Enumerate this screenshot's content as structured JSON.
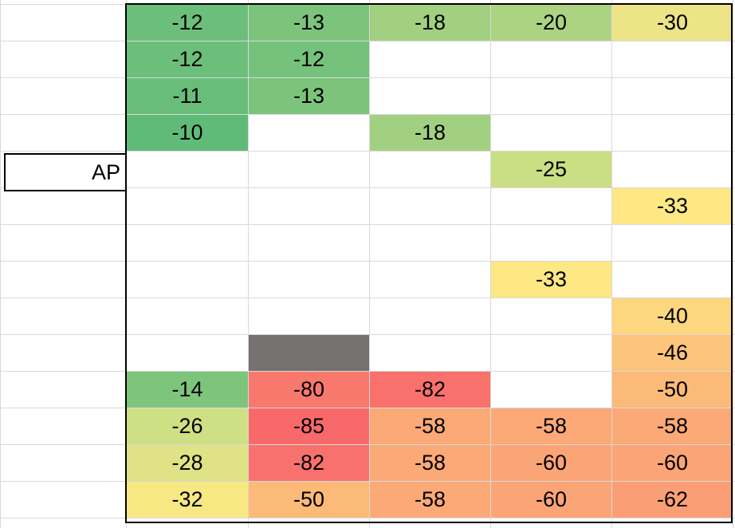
{
  "sheet": {
    "label_cell": "AP",
    "grid": [
      [
        {
          "v": "-12",
          "bg": "#6bbf7a"
        },
        {
          "v": "-13",
          "bg": "#7cc47c"
        },
        {
          "v": "-18",
          "bg": "#a2d081"
        },
        {
          "v": "-20",
          "bg": "#acd381"
        },
        {
          "v": "-30",
          "bg": "#ede487"
        }
      ],
      [
        {
          "v": "-12",
          "bg": "#6bbf7a"
        },
        {
          "v": "-12",
          "bg": "#74c27b"
        },
        {
          "v": "",
          "bg": ""
        },
        {
          "v": "",
          "bg": ""
        },
        {
          "v": "",
          "bg": ""
        }
      ],
      [
        {
          "v": "-11",
          "bg": "#68be79"
        },
        {
          "v": "-13",
          "bg": "#7cc47c"
        },
        {
          "v": "",
          "bg": ""
        },
        {
          "v": "",
          "bg": ""
        },
        {
          "v": "",
          "bg": ""
        }
      ],
      [
        {
          "v": "-10",
          "bg": "#60bb78"
        },
        {
          "v": "",
          "bg": ""
        },
        {
          "v": "-18",
          "bg": "#a2d081"
        },
        {
          "v": "",
          "bg": ""
        },
        {
          "v": "",
          "bg": ""
        }
      ],
      [
        {
          "v": "",
          "bg": ""
        },
        {
          "v": "",
          "bg": ""
        },
        {
          "v": "",
          "bg": ""
        },
        {
          "v": "-25",
          "bg": "#cade84"
        },
        {
          "v": "",
          "bg": ""
        }
      ],
      [
        {
          "v": "",
          "bg": ""
        },
        {
          "v": "",
          "bg": ""
        },
        {
          "v": "",
          "bg": ""
        },
        {
          "v": "",
          "bg": ""
        },
        {
          "v": "-33",
          "bg": "#fde884"
        }
      ],
      [
        {
          "v": "",
          "bg": ""
        },
        {
          "v": "",
          "bg": ""
        },
        {
          "v": "",
          "bg": ""
        },
        {
          "v": "",
          "bg": ""
        },
        {
          "v": "",
          "bg": ""
        }
      ],
      [
        {
          "v": "",
          "bg": ""
        },
        {
          "v": "",
          "bg": ""
        },
        {
          "v": "",
          "bg": ""
        },
        {
          "v": "-33",
          "bg": "#fde884"
        },
        {
          "v": "",
          "bg": ""
        }
      ],
      [
        {
          "v": "",
          "bg": ""
        },
        {
          "v": "",
          "bg": ""
        },
        {
          "v": "",
          "bg": ""
        },
        {
          "v": "",
          "bg": ""
        },
        {
          "v": "-40",
          "bg": "#fdd680"
        }
      ],
      [
        {
          "v": "",
          "bg": ""
        },
        {
          "v": "",
          "bg": "#757171"
        },
        {
          "v": "",
          "bg": ""
        },
        {
          "v": "",
          "bg": ""
        },
        {
          "v": "-46",
          "bg": "#fcc37b"
        }
      ],
      [
        {
          "v": "-14",
          "bg": "#7ec57c"
        },
        {
          "v": "-80",
          "bg": "#f8786d"
        },
        {
          "v": "-82",
          "bg": "#f8716c"
        },
        {
          "v": "",
          "bg": ""
        },
        {
          "v": "-50",
          "bg": "#fbba78"
        }
      ],
      [
        {
          "v": "-26",
          "bg": "#cfdf84"
        },
        {
          "v": "-85",
          "bg": "#f8696b"
        },
        {
          "v": "-58",
          "bg": "#fba977"
        },
        {
          "v": "-58",
          "bg": "#fba977"
        },
        {
          "v": "-58",
          "bg": "#fba977"
        }
      ],
      [
        {
          "v": "-28",
          "bg": "#dfe285"
        },
        {
          "v": "-82",
          "bg": "#f8716c"
        },
        {
          "v": "-58",
          "bg": "#fba977"
        },
        {
          "v": "-60",
          "bg": "#fba476"
        },
        {
          "v": "-60",
          "bg": "#fba476"
        }
      ],
      [
        {
          "v": "-32",
          "bg": "#f8e884"
        },
        {
          "v": "-50",
          "bg": "#fbba78"
        },
        {
          "v": "-58",
          "bg": "#fba977"
        },
        {
          "v": "-60",
          "bg": "#fba476"
        },
        {
          "v": "-62",
          "bg": "#fa9f75"
        }
      ]
    ]
  }
}
